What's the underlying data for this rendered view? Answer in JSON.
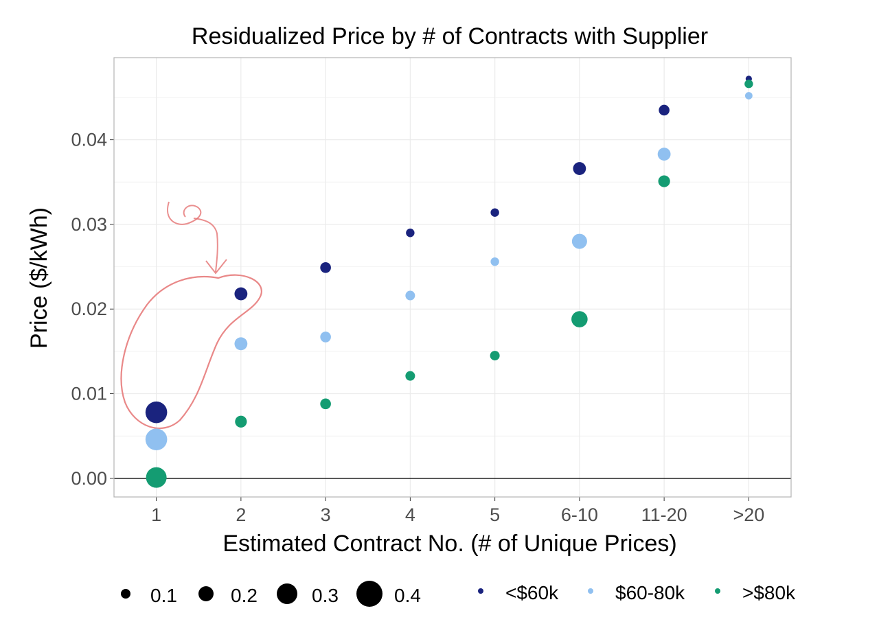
{
  "chart_data": {
    "type": "scatter",
    "title": "Residualized Price by # of Contracts with Supplier",
    "xlabel": "Estimated Contract No. (# of Unique Prices)",
    "ylabel": "Price ($/kWh)",
    "categories": [
      "1",
      "2",
      "3",
      "4",
      "5",
      "6-10",
      "11-20",
      ">20"
    ],
    "ylim": [
      -0.0022,
      0.0497
    ],
    "yticks": [
      0.0,
      0.01,
      0.02,
      0.03,
      0.04
    ],
    "ytick_labels": [
      "0.00",
      "0.01",
      "0.02",
      "0.03",
      "0.04"
    ],
    "grid": true,
    "hline": 0,
    "series": [
      {
        "name": "<$60k",
        "color": "#1a237e",
        "values": [
          0.0078,
          0.0218,
          0.0249,
          0.029,
          0.0314,
          0.0366,
          0.0435,
          0.0472
        ],
        "sizes": [
          0.32,
          0.16,
          0.12,
          0.08,
          0.08,
          0.16,
          0.12,
          0.04
        ]
      },
      {
        "name": "$60-80k",
        "color": "#90c0f0",
        "values": [
          0.0046,
          0.0159,
          0.0167,
          0.0216,
          0.0256,
          0.028,
          0.0383,
          0.0452
        ],
        "sizes": [
          0.32,
          0.16,
          0.12,
          0.1,
          0.08,
          0.2,
          0.16,
          0.06
        ]
      },
      {
        "name": ">$80k",
        "color": "#149c72",
        "values": [
          0.0001,
          0.0067,
          0.0088,
          0.0121,
          0.0145,
          0.0188,
          0.0351,
          0.0466
        ],
        "sizes": [
          0.3,
          0.14,
          0.12,
          0.1,
          0.1,
          0.22,
          0.14,
          0.08
        ]
      }
    ],
    "size_legend": {
      "values": [
        0.1,
        0.2,
        0.3,
        0.4
      ],
      "labels": [
        "0.1",
        "0.2",
        "0.3",
        "0.4"
      ]
    },
    "annotation": "hand-drawn red circle with arrow around x = 1 to 2 points"
  }
}
